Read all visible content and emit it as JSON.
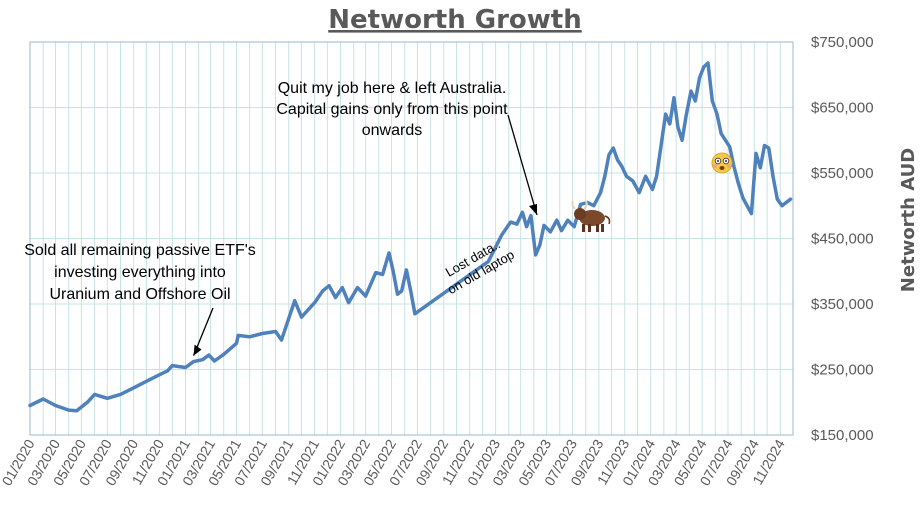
{
  "chart_data": {
    "type": "line",
    "title": "Networth Growth",
    "ylabel": "Networth AUD",
    "xlabel": "",
    "ylim": [
      150000,
      750000
    ],
    "xlim": [
      "2020-01",
      "2024-12"
    ],
    "y_ticks": [
      "$150,000",
      "$250,000",
      "$350,000",
      "$450,000",
      "$550,000",
      "$650,000",
      "$750,000"
    ],
    "y_tick_values": [
      150000,
      250000,
      350000,
      450000,
      550000,
      650000,
      750000
    ],
    "x_ticks": [
      "01/2020",
      "03/2020",
      "05/2020",
      "07/2020",
      "09/2020",
      "11/2020",
      "01/2021",
      "03/2021",
      "05/2021",
      "07/2021",
      "09/2021",
      "11/2021",
      "01/2022",
      "03/2022",
      "05/2022",
      "07/2022",
      "09/2022",
      "11/2022",
      "01/2023",
      "03/2023",
      "05/2023",
      "07/2023",
      "09/2023",
      "11/2023",
      "01/2024",
      "03/2024",
      "05/2024",
      "07/2024",
      "09/2024",
      "11/2024"
    ],
    "grid": true,
    "legend": "none",
    "series": [
      {
        "color": "#4f81bd",
        "points": [
          [
            "2020-01-01",
            195000
          ],
          [
            "2020-02-01",
            205000
          ],
          [
            "2020-03-01",
            195000
          ],
          [
            "2020-04-01",
            188000
          ],
          [
            "2020-04-20",
            187000
          ],
          [
            "2020-05-15",
            200000
          ],
          [
            "2020-06-01",
            212000
          ],
          [
            "2020-07-01",
            206000
          ],
          [
            "2020-08-01",
            212000
          ],
          [
            "2020-09-01",
            222000
          ],
          [
            "2020-10-01",
            232000
          ],
          [
            "2020-11-01",
            242000
          ],
          [
            "2020-11-20",
            248000
          ],
          [
            "2020-12-01",
            256000
          ],
          [
            "2021-01-01",
            253000
          ],
          [
            "2021-01-20",
            262000
          ],
          [
            "2021-02-10",
            265000
          ],
          [
            "2021-02-25",
            272000
          ],
          [
            "2021-03-10",
            263000
          ],
          [
            "2021-04-01",
            273000
          ],
          [
            "2021-05-01",
            290000
          ],
          [
            "2021-05-05",
            302000
          ],
          [
            "2021-06-01",
            300000
          ],
          [
            "2021-07-01",
            305000
          ],
          [
            "2021-08-01",
            308000
          ],
          [
            "2021-08-15",
            295000
          ],
          [
            "2021-09-15",
            355000
          ],
          [
            "2021-10-01",
            330000
          ],
          [
            "2021-11-01",
            352000
          ],
          [
            "2021-11-20",
            370000
          ],
          [
            "2021-12-05",
            378000
          ],
          [
            "2021-12-20",
            360000
          ],
          [
            "2022-01-05",
            375000
          ],
          [
            "2022-01-20",
            352000
          ],
          [
            "2022-02-10",
            375000
          ],
          [
            "2022-03-01",
            362000
          ],
          [
            "2022-03-25",
            398000
          ],
          [
            "2022-04-10",
            395000
          ],
          [
            "2022-04-25",
            428000
          ],
          [
            "2022-05-05",
            400000
          ],
          [
            "2022-05-15",
            365000
          ],
          [
            "2022-05-25",
            370000
          ],
          [
            "2022-06-05",
            402000
          ],
          [
            "2022-06-15",
            370000
          ],
          [
            "2022-06-25",
            335000
          ],
          [
            "2022-12-15",
            415000
          ],
          [
            "2023-01-15",
            455000
          ],
          [
            "2023-02-05",
            475000
          ],
          [
            "2023-02-20",
            472000
          ],
          [
            "2023-03-05",
            490000
          ],
          [
            "2023-03-15",
            468000
          ],
          [
            "2023-03-25",
            485000
          ],
          [
            "2023-04-05",
            425000
          ],
          [
            "2023-04-15",
            440000
          ],
          [
            "2023-04-25",
            470000
          ],
          [
            "2023-05-10",
            460000
          ],
          [
            "2023-05-25",
            478000
          ],
          [
            "2023-06-05",
            462000
          ],
          [
            "2023-06-20",
            478000
          ],
          [
            "2023-07-05",
            468000
          ],
          [
            "2023-07-20",
            502000
          ],
          [
            "2023-08-05",
            505000
          ],
          [
            "2023-08-20",
            500000
          ],
          [
            "2023-09-05",
            520000
          ],
          [
            "2023-09-15",
            545000
          ],
          [
            "2023-09-25",
            578000
          ],
          [
            "2023-10-05",
            588000
          ],
          [
            "2023-10-15",
            570000
          ],
          [
            "2023-10-25",
            560000
          ],
          [
            "2023-11-05",
            545000
          ],
          [
            "2023-11-20",
            538000
          ],
          [
            "2023-12-05",
            520000
          ],
          [
            "2023-12-20",
            545000
          ],
          [
            "2024-01-05",
            525000
          ],
          [
            "2024-01-15",
            545000
          ],
          [
            "2024-01-25",
            590000
          ],
          [
            "2024-02-05",
            640000
          ],
          [
            "2024-02-15",
            625000
          ],
          [
            "2024-02-25",
            665000
          ],
          [
            "2024-03-05",
            620000
          ],
          [
            "2024-03-15",
            600000
          ],
          [
            "2024-03-25",
            640000
          ],
          [
            "2024-04-05",
            675000
          ],
          [
            "2024-04-15",
            660000
          ],
          [
            "2024-04-25",
            695000
          ],
          [
            "2024-05-05",
            712000
          ],
          [
            "2024-05-15",
            718000
          ],
          [
            "2024-05-25",
            660000
          ],
          [
            "2024-06-05",
            640000
          ],
          [
            "2024-06-15",
            610000
          ],
          [
            "2024-06-25",
            600000
          ],
          [
            "2024-07-05",
            590000
          ],
          [
            "2024-07-15",
            560000
          ],
          [
            "2024-07-25",
            535000
          ],
          [
            "2024-08-05",
            512000
          ],
          [
            "2024-08-15",
            500000
          ],
          [
            "2024-08-25",
            488000
          ],
          [
            "2024-09-05",
            580000
          ],
          [
            "2024-09-15",
            558000
          ],
          [
            "2024-09-25",
            592000
          ],
          [
            "2024-10-05",
            588000
          ],
          [
            "2024-10-15",
            545000
          ],
          [
            "2024-10-25",
            510000
          ],
          [
            "2024-11-05",
            500000
          ],
          [
            "2024-11-15",
            505000
          ],
          [
            "2024-11-25",
            510000
          ]
        ]
      }
    ],
    "annotations": [
      {
        "text_lines": [
          "Sold all remaining passive ETF's",
          "investing everything into",
          "Uranium and Offshore Oil"
        ],
        "points_to": [
          "2021-01-20",
          262000
        ]
      },
      {
        "text_lines": [
          "Quit my job here & left Australia.",
          "Capital gains only from this point",
          "onwards"
        ],
        "points_to": [
          "2023-04-15",
          460000
        ]
      },
      {
        "text_lines": [
          "Lost data..",
          "on old laptop"
        ]
      }
    ],
    "icons": [
      {
        "name": "bull-icon",
        "at": [
          "2023-06-20",
          480000
        ]
      },
      {
        "name": "shocked-face-icon",
        "at": [
          "2024-06-20",
          565000
        ]
      }
    ]
  }
}
